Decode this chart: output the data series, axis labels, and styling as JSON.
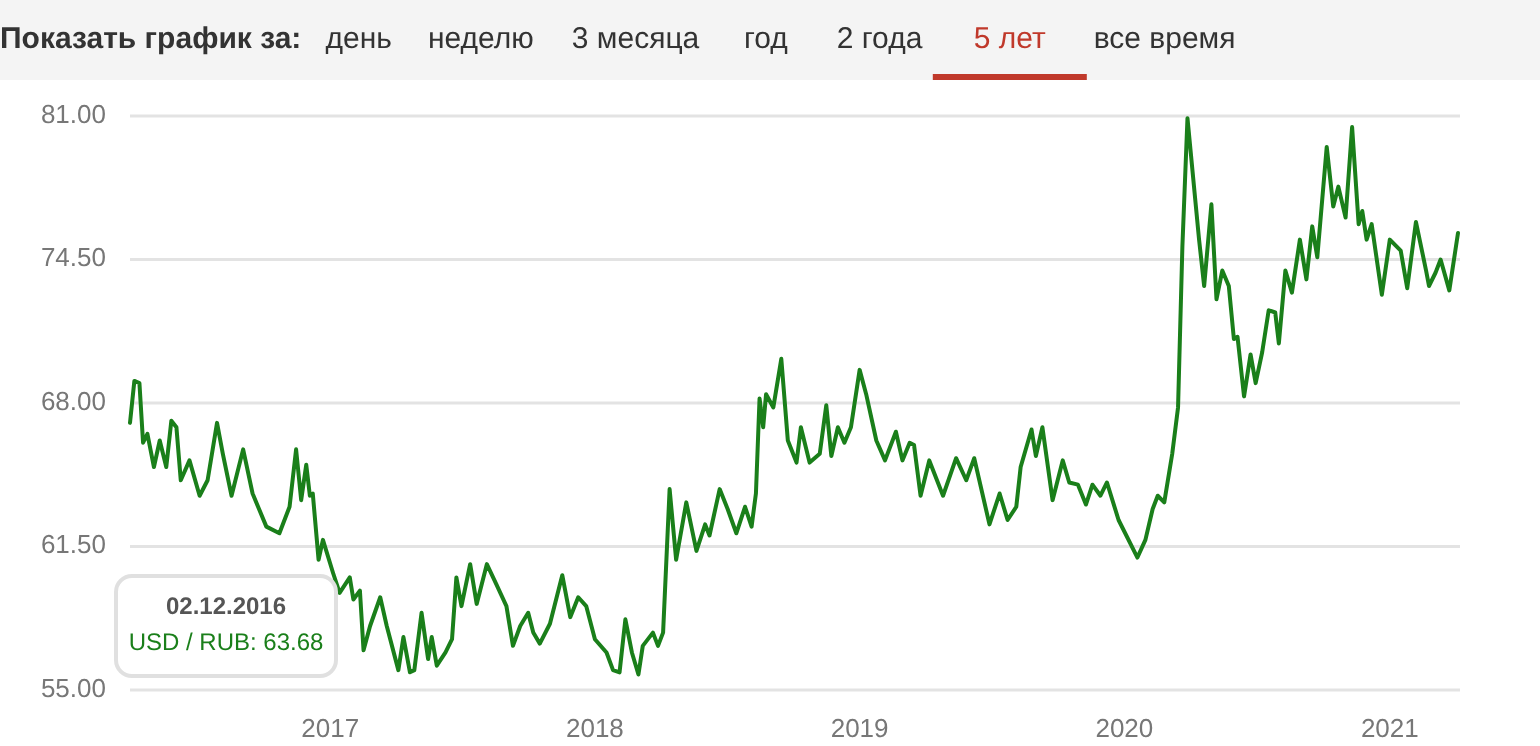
{
  "chart_data": [
    {
      "type": "other",
      "title": "Показать график за:",
      "annotations": [
        "день",
        "неделю",
        "3 месяца",
        "год",
        "2 года",
        "5 лет",
        "все время"
      ]
    },
    {
      "type": "line",
      "color": "#1a7f1a",
      "grid": "y",
      "xlim": [
        "2016-03-31",
        "2021-04-05"
      ],
      "ylim": [
        55,
        81
      ],
      "xticks": [
        "2017",
        "2018",
        "2019",
        "2020",
        "2021"
      ],
      "yticks": [
        {
          "value": 55,
          "label": "55.00"
        },
        {
          "value": 61.5,
          "label": "61.50"
        },
        {
          "value": 68,
          "label": "68.00"
        },
        {
          "value": 74.5,
          "label": "74.50"
        },
        {
          "value": 81,
          "label": "81.00"
        }
      ],
      "annotations": [
        "02.12.2016",
        "USD / RUB: 63.68"
      ],
      "x": [
        "2016-03-31",
        "2016-04-06",
        "2016-04-13",
        "2016-04-18",
        "2016-04-24",
        "2016-05-03",
        "2016-05-11",
        "2016-05-20",
        "2016-05-27",
        "2016-06-03",
        "2016-06-09",
        "2016-06-21",
        "2016-07-05",
        "2016-07-16",
        "2016-07-29",
        "2016-08-06",
        "2016-08-18",
        "2016-09-03",
        "2016-09-16",
        "2016-10-05",
        "2016-10-23",
        "2016-11-06",
        "2016-11-15",
        "2016-11-22",
        "2016-11-29",
        "2016-12-04",
        "2016-12-08",
        "2016-12-16",
        "2016-12-22",
        "2017-01-05",
        "2017-01-14",
        "2017-01-28",
        "2017-02-02",
        "2017-02-11",
        "2017-02-16",
        "2017-02-25",
        "2017-03-11",
        "2017-03-20",
        "2017-04-05",
        "2017-04-12",
        "2017-04-21",
        "2017-04-27",
        "2017-05-07",
        "2017-05-16",
        "2017-05-21",
        "2017-05-28",
        "2017-06-09",
        "2017-06-18",
        "2017-06-24",
        "2017-07-01",
        "2017-07-13",
        "2017-07-22",
        "2017-08-05",
        "2017-08-18",
        "2017-09-01",
        "2017-09-10",
        "2017-09-20",
        "2017-10-01",
        "2017-10-08",
        "2017-10-17",
        "2017-10-31",
        "2017-11-17",
        "2017-11-28",
        "2017-12-09",
        "2017-12-20",
        "2018-01-01",
        "2018-01-17",
        "2018-01-26",
        "2018-02-04",
        "2018-02-12",
        "2018-02-21",
        "2018-03-02",
        "2018-03-08",
        "2018-03-22",
        "2018-03-29",
        "2018-04-05",
        "2018-04-14",
        "2018-04-23",
        "2018-05-07",
        "2018-05-21",
        "2018-06-02",
        "2018-06-08",
        "2018-06-22",
        "2018-07-03",
        "2018-07-15",
        "2018-07-27",
        "2018-08-05",
        "2018-08-11",
        "2018-08-16",
        "2018-08-21",
        "2018-08-25",
        "2018-09-04",
        "2018-09-15",
        "2018-09-24",
        "2018-10-06",
        "2018-10-12",
        "2018-10-24",
        "2018-11-07",
        "2018-11-16",
        "2018-11-23",
        "2018-12-02",
        "2018-12-11",
        "2018-12-20",
        "2019-01-01",
        "2019-01-10",
        "2019-01-24",
        "2019-02-05",
        "2019-02-20",
        "2019-03-01",
        "2019-03-11",
        "2019-03-17",
        "2019-03-26",
        "2019-04-07",
        "2019-04-26",
        "2019-05-14",
        "2019-05-28",
        "2019-06-08",
        "2019-06-29",
        "2019-07-13",
        "2019-07-24",
        "2019-08-05",
        "2019-08-11",
        "2019-08-26",
        "2019-09-01",
        "2019-09-10",
        "2019-09-24",
        "2019-10-08",
        "2019-10-17",
        "2019-10-29",
        "2019-11-09",
        "2019-11-18",
        "2019-11-29",
        "2019-12-08",
        "2019-12-24",
        "2020-01-19",
        "2020-01-30",
        "2020-02-09",
        "2020-02-16",
        "2020-02-25",
        "2020-03-07",
        "2020-03-15",
        "2020-03-21",
        "2020-03-28",
        "2020-04-13",
        "2020-04-20",
        "2020-04-30",
        "2020-05-07",
        "2020-05-15",
        "2020-05-24",
        "2020-05-31",
        "2020-06-05",
        "2020-06-14",
        "2020-06-23",
        "2020-06-30",
        "2020-07-09",
        "2020-07-18",
        "2020-07-27",
        "2020-08-01",
        "2020-08-10",
        "2020-08-19",
        "2020-08-30",
        "2020-09-08",
        "2020-09-16",
        "2020-09-23",
        "2020-10-06",
        "2020-10-15",
        "2020-10-22",
        "2020-11-01",
        "2020-11-10",
        "2020-11-19",
        "2020-11-24",
        "2020-11-30",
        "2020-12-07",
        "2020-12-21",
        "2021-01-01",
        "2021-01-16",
        "2021-01-25",
        "2021-02-06",
        "2021-02-20",
        "2021-02-24",
        "2021-03-05",
        "2021-03-12",
        "2021-03-24",
        "2021-04-05"
      ],
      "values": [
        67.1,
        69.0,
        68.9,
        66.2,
        66.6,
        65.1,
        66.3,
        65.1,
        67.2,
        66.9,
        64.5,
        65.4,
        63.8,
        64.5,
        67.1,
        65.7,
        63.8,
        65.9,
        63.9,
        62.4,
        62.1,
        63.3,
        65.9,
        63.6,
        65.2,
        63.8,
        63.9,
        60.9,
        61.8,
        60.3,
        59.4,
        60.1,
        59.1,
        59.5,
        56.8,
        57.9,
        59.2,
        57.9,
        55.9,
        57.4,
        55.8,
        55.9,
        58.5,
        56.4,
        57.4,
        56.1,
        56.7,
        57.3,
        60.1,
        58.8,
        60.7,
        58.9,
        60.7,
        59.8,
        58.8,
        57.0,
        57.9,
        58.5,
        57.6,
        57.1,
        58.0,
        60.2,
        58.3,
        59.2,
        58.8,
        57.3,
        56.7,
        55.9,
        55.8,
        58.2,
        56.7,
        55.7,
        57.0,
        57.6,
        57.0,
        57.6,
        64.1,
        60.9,
        63.5,
        61.3,
        62.5,
        62.0,
        64.1,
        63.2,
        62.1,
        63.3,
        62.4,
        63.9,
        68.2,
        66.9,
        68.4,
        67.8,
        70.0,
        66.3,
        65.3,
        66.9,
        65.3,
        65.7,
        67.9,
        65.6,
        66.9,
        66.2,
        66.9,
        69.5,
        68.4,
        66.3,
        65.4,
        66.7,
        65.4,
        66.2,
        66.1,
        63.8,
        65.4,
        63.8,
        65.5,
        64.5,
        65.5,
        62.5,
        63.9,
        62.7,
        63.3,
        65.1,
        66.8,
        65.6,
        66.9,
        63.6,
        65.4,
        64.4,
        64.3,
        63.4,
        64.3,
        63.8,
        64.4,
        62.7,
        61.0,
        61.8,
        63.2,
        63.8,
        63.5,
        65.7,
        67.8,
        75.1,
        80.9,
        75.4,
        73.3,
        77.0,
        72.7,
        74.0,
        73.3,
        70.9,
        71.0,
        68.3,
        70.2,
        68.9,
        70.3,
        72.2,
        72.1,
        70.7,
        74.0,
        73.0,
        75.4,
        73.6,
        76.0,
        74.6,
        79.6,
        76.9,
        77.8,
        76.4,
        80.5,
        76.1,
        76.7,
        75.4,
        76.1,
        72.9,
        75.4,
        74.9,
        73.2,
        76.2,
        74.0,
        73.3,
        73.9,
        74.5,
        73.1,
        75.7
      ]
    }
  ]
}
